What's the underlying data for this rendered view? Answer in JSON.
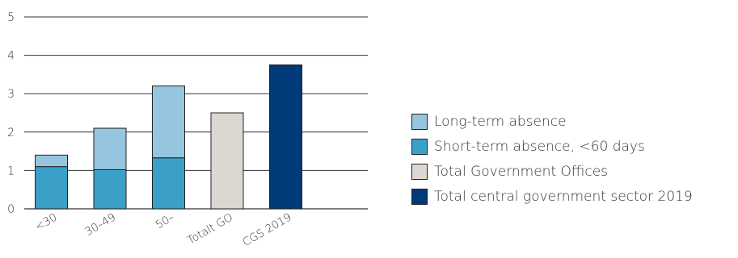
{
  "chart_data": {
    "type": "bar",
    "stacked": true,
    "categories": [
      "<30",
      "30–49",
      "50–",
      "Totalt GO",
      "CGS 2019"
    ],
    "series": [
      {
        "name": "Short-term absence, <60 days",
        "color": "#3aa0c8",
        "values": [
          1.1,
          1.02,
          1.33,
          null,
          null
        ]
      },
      {
        "name": "Long-term absence",
        "color": "#96c5e0",
        "values": [
          0.3,
          1.08,
          1.87,
          null,
          null
        ]
      },
      {
        "name": "Total Government Offices",
        "color": "#ddd7d2",
        "values": [
          null,
          null,
          null,
          2.5,
          null
        ]
      },
      {
        "name": "Total central government sector 2019",
        "color": "#003a78",
        "values": [
          null,
          null,
          null,
          null,
          3.75
        ]
      }
    ],
    "yticks": [
      "0",
      "1",
      "2",
      "3",
      "4",
      "5"
    ],
    "ylim": [
      0,
      5
    ],
    "grid": true,
    "legend_position": "right"
  },
  "legend": {
    "items": [
      {
        "label": "Long-term absence",
        "color": "#96c5e0"
      },
      {
        "label": "Short-term absence, <60 days",
        "color": "#3aa0c8"
      },
      {
        "label": "Total Government Offices",
        "color": "#ddd7d2"
      },
      {
        "label": "Total central government sector 2019",
        "color": "#003a78"
      }
    ]
  }
}
